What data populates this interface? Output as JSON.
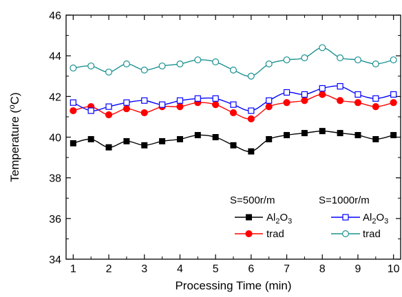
{
  "chart_data": {
    "type": "line",
    "xlabel": "Processing Time (min)",
    "ylabel": {
      "prefix": "Temperature  (",
      "superscript": "o",
      "suffix": "C)"
    },
    "xlim": [
      0.8,
      10.2
    ],
    "ylim": [
      34,
      46
    ],
    "x_ticks": [
      "1",
      "2",
      "3",
      "4",
      "5",
      "6",
      "7",
      "8",
      "9",
      "10"
    ],
    "y_ticks": [
      "34",
      "36",
      "38",
      "40",
      "42",
      "44",
      "46"
    ],
    "grid": false,
    "legend": {
      "placement": "bottom-right",
      "group_headers": [
        "S=500r/m",
        "S=1000r/m"
      ],
      "entries": [
        {
          "label_main": "Al",
          "sub1": "2",
          "mid": "O",
          "sub2": "3"
        },
        {
          "label_main": "trad"
        },
        {
          "label_main": "Al",
          "sub1": "2",
          "mid": "O",
          "sub2": "3"
        },
        {
          "label_main": "trad"
        }
      ]
    },
    "x": [
      1,
      1.5,
      2,
      2.5,
      3,
      3.5,
      4,
      4.5,
      5,
      5.5,
      6,
      6.5,
      7,
      7.5,
      8,
      8.5,
      9,
      9.5,
      10
    ],
    "series": [
      {
        "group": "S=500r/m",
        "name": "Al2O3",
        "color": "#000000",
        "marker": "square-filled",
        "values": [
          39.7,
          39.9,
          39.5,
          39.8,
          39.6,
          39.8,
          39.9,
          40.1,
          40.0,
          39.6,
          39.3,
          39.9,
          40.1,
          40.2,
          40.3,
          40.2,
          40.1,
          39.9,
          40.1
        ]
      },
      {
        "group": "S=500r/m",
        "name": "trad",
        "color": "#ff0000",
        "marker": "circle-filled",
        "values": [
          41.3,
          41.5,
          41.1,
          41.4,
          41.2,
          41.5,
          41.5,
          41.7,
          41.6,
          41.2,
          40.9,
          41.5,
          41.7,
          41.8,
          42.1,
          41.8,
          41.7,
          41.5,
          41.7
        ]
      },
      {
        "group": "S=1000r/m",
        "name": "Al2O3",
        "color": "#0000ff",
        "marker": "square-open",
        "values": [
          41.7,
          41.3,
          41.5,
          41.7,
          41.8,
          41.6,
          41.8,
          41.9,
          41.9,
          41.6,
          41.3,
          41.8,
          42.2,
          42.1,
          42.4,
          42.5,
          42.1,
          41.9,
          42.1
        ]
      },
      {
        "group": "S=1000r/m",
        "name": "trad",
        "color": "#1a9090",
        "marker": "circle-open",
        "values": [
          43.4,
          43.5,
          43.2,
          43.6,
          43.3,
          43.5,
          43.6,
          43.8,
          43.7,
          43.3,
          43.0,
          43.6,
          43.8,
          43.9,
          44.4,
          43.9,
          43.8,
          43.6,
          43.8
        ]
      }
    ]
  }
}
